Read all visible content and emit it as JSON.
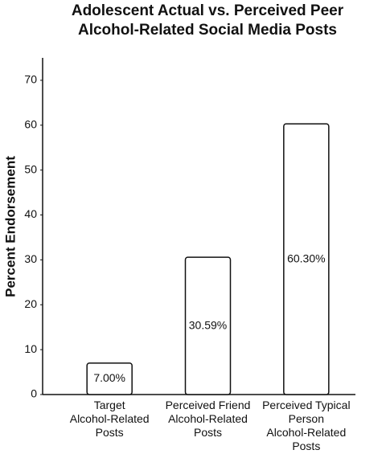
{
  "chart_data": {
    "type": "bar",
    "title": "Adolescent Actual vs. Perceived Peer Alcohol-Related Social Media Posts",
    "y_label": "Percent Endorsement",
    "categories": [
      "Target Alcohol-Related Posts",
      "Perceived Friend Alcohol-Related Posts",
      "Perceived Typical Person Alcohol-Related Posts"
    ],
    "values": [
      7.0,
      30.59,
      60.3
    ],
    "value_labels": [
      "7.00%",
      "30.59%",
      "60.30%"
    ],
    "color": "#ffffff",
    "ylim": [
      0,
      75
    ],
    "yticks": [
      0,
      10,
      20,
      30,
      40,
      50,
      60,
      70
    ],
    "grid": false
  }
}
